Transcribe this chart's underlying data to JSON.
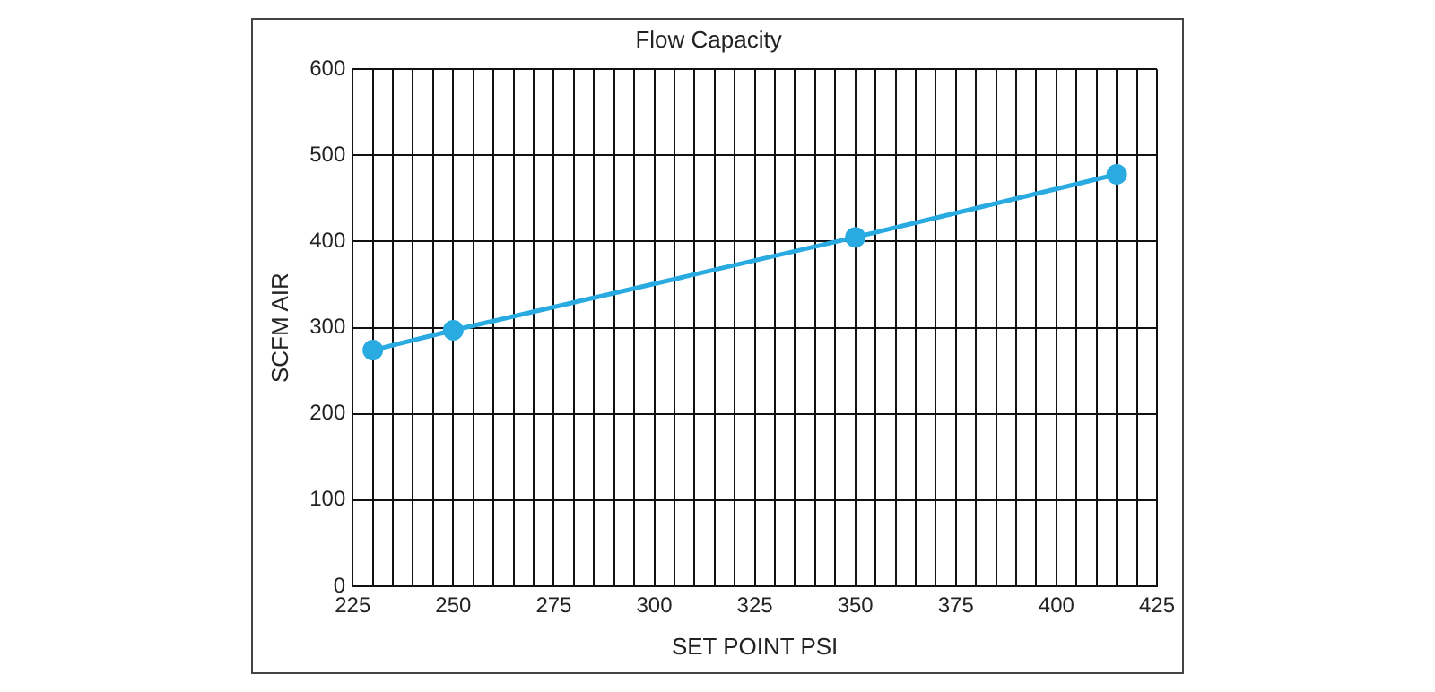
{
  "chart_data": {
    "type": "line",
    "title": "Flow Capacity",
    "xlabel": "SET POINT PSI",
    "ylabel": "SCFM AIR",
    "x": [
      230,
      250,
      350,
      415
    ],
    "series": [
      {
        "color": "#29abe2",
        "values": [
          274,
          297,
          405,
          478
        ]
      }
    ],
    "xlim": [
      225,
      425
    ],
    "xticks": [
      225,
      {
        "value": 230,
        "label": null
      },
      {
        "value": 235,
        "label": null
      },
      {
        "value": 240,
        "label": null
      },
      {
        "value": 245,
        "label": null
      },
      250,
      {
        "value": 255,
        "label": null
      },
      {
        "value": 260,
        "label": null
      },
      {
        "value": 265,
        "label": null
      },
      {
        "value": 270,
        "label": null
      },
      275,
      {
        "value": 280,
        "label": null
      },
      {
        "value": 285,
        "label": null
      },
      {
        "value": 290,
        "label": null
      },
      {
        "value": 295,
        "label": null
      },
      300,
      {
        "value": 305,
        "label": null
      },
      {
        "value": 310,
        "label": null
      },
      {
        "value": 315,
        "label": null
      },
      {
        "value": 320,
        "label": null
      },
      325,
      {
        "value": 330,
        "label": null
      },
      {
        "value": 335,
        "label": null
      },
      {
        "value": 340,
        "label": null
      },
      {
        "value": 345,
        "label": null
      },
      350,
      {
        "value": 355,
        "label": null
      },
      {
        "value": 360,
        "label": null
      },
      {
        "value": 365,
        "label": null
      },
      {
        "value": 370,
        "label": null
      },
      375,
      {
        "value": 380,
        "label": null
      },
      {
        "value": 385,
        "label": null
      },
      {
        "value": 390,
        "label": null
      },
      {
        "value": 395,
        "label": null
      },
      400,
      {
        "value": 405,
        "label": null
      },
      {
        "value": 410,
        "label": null
      },
      {
        "value": 415,
        "label": null
      },
      {
        "value": 420,
        "label": null
      },
      425
    ],
    "ylim": [
      0,
      600
    ],
    "yticks": [
      0,
      100,
      200,
      300,
      400,
      500,
      600
    ],
    "grid": true,
    "legend": false,
    "marker": "circle",
    "line_style": "solid"
  }
}
